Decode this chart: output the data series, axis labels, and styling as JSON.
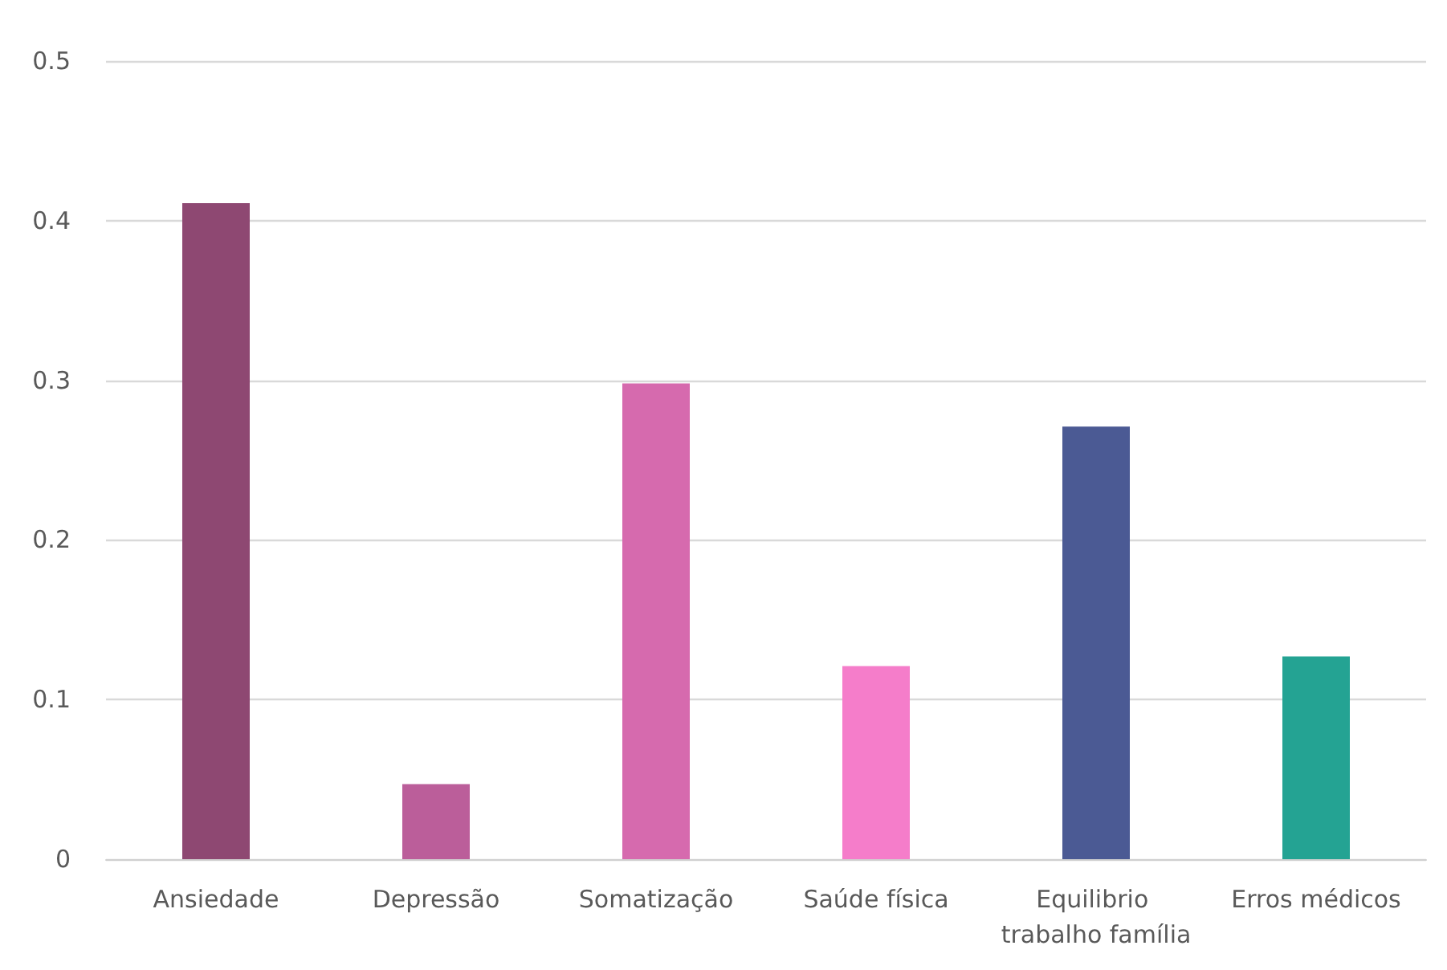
{
  "chart_data": {
    "type": "bar",
    "categories": [
      "Ansiedade",
      "Depressão",
      "Somatização",
      "Saúde física",
      "Equilibrio trabalho família",
      "Erros médicos"
    ],
    "values": [
      0.411,
      0.047,
      0.298,
      0.121,
      0.271,
      0.127
    ],
    "colors": [
      "#8e4872",
      "#bb5e9a",
      "#d66aae",
      "#f57dca",
      "#4b5a94",
      "#24a393"
    ],
    "ylim": [
      0,
      0.5
    ],
    "yticks": [
      0,
      0.1,
      0.2,
      0.3,
      0.4,
      0.5
    ],
    "grid": "y"
  }
}
